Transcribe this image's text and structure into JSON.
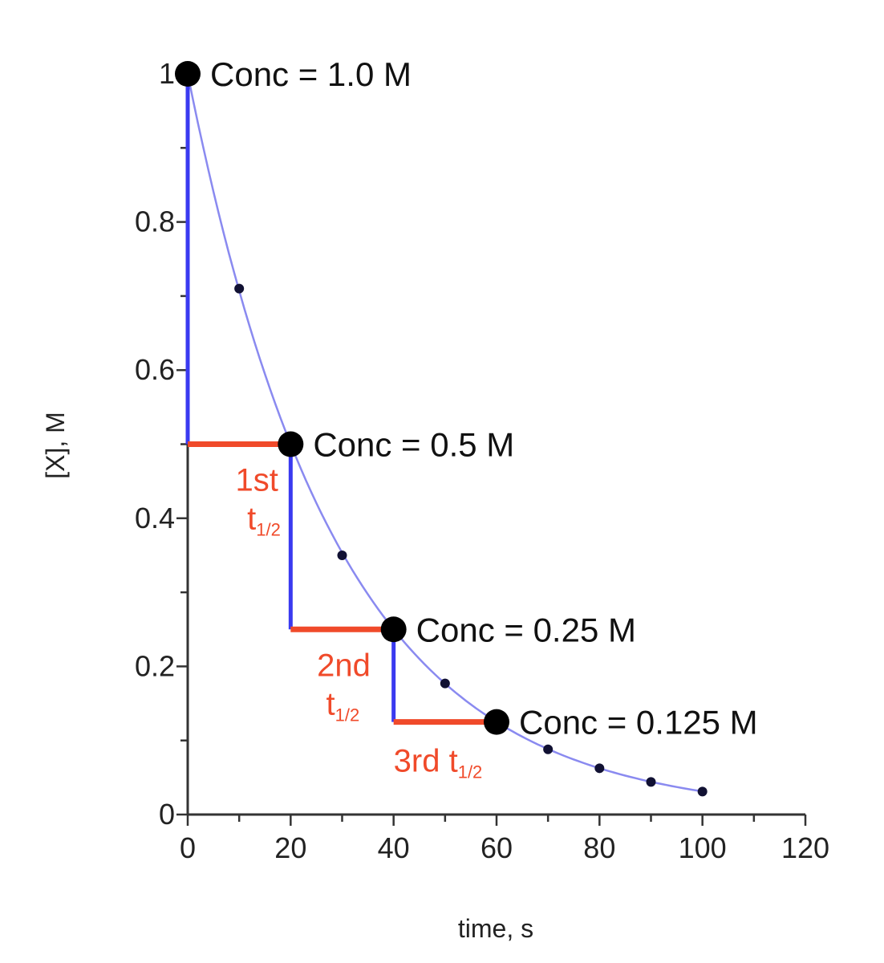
{
  "chart_data": {
    "type": "line",
    "xlabel": "time, s",
    "ylabel": "[X], M",
    "xlim": [
      0,
      120
    ],
    "ylim": [
      0,
      1
    ],
    "x_ticks": [
      "0",
      "20",
      "40",
      "60",
      "80",
      "100",
      "120"
    ],
    "y_ticks": [
      "0",
      "0.2",
      "0.4",
      "0.6",
      "0.8",
      "1"
    ],
    "series": [
      {
        "x": [
          0,
          10,
          20,
          30,
          40,
          50,
          60,
          70,
          80,
          90,
          100
        ],
        "y": [
          1.0,
          0.71,
          0.5,
          0.35,
          0.25,
          0.177,
          0.125,
          0.088,
          0.0625,
          0.044,
          0.031
        ],
        "color": "#8a8af0"
      }
    ],
    "highlight_points": [
      {
        "x": 0,
        "y": 1.0,
        "label": "Conc = 1.0 M"
      },
      {
        "x": 20,
        "y": 0.5,
        "label": "Conc = 0.5 M"
      },
      {
        "x": 40,
        "y": 0.25,
        "label": "Conc = 0.25 M"
      },
      {
        "x": 60,
        "y": 0.125,
        "label": "Conc = 0.125 M"
      }
    ],
    "half_lives": [
      {
        "x_start": 0,
        "x_end": 20,
        "y_top": 1.0,
        "y_level": 0.5,
        "label_main": "1st",
        "label_t": "t",
        "label_sub": "1/2"
      },
      {
        "x_start": 20,
        "x_end": 40,
        "y_top": 0.5,
        "y_level": 0.25,
        "label_main": "2nd",
        "label_t": "t",
        "label_sub": "1/2"
      },
      {
        "x_start": 40,
        "x_end": 60,
        "y_top": 0.25,
        "y_level": 0.125,
        "label_main": "3rd t",
        "label_t": "",
        "label_sub": "1/2"
      }
    ],
    "colors": {
      "drop": "#3a3af0",
      "half": "#f04a2a",
      "axis": "#333333"
    }
  }
}
